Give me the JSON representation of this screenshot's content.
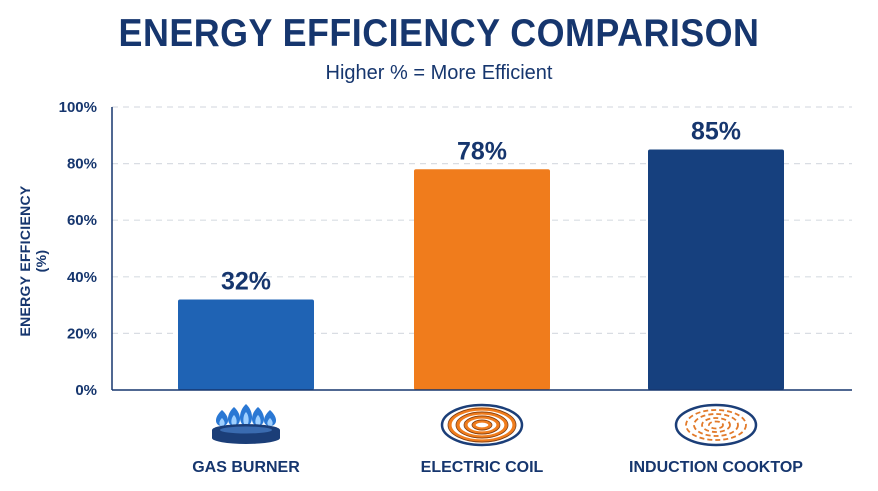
{
  "chart_data": {
    "type": "bar",
    "title": "ENERGY EFFICIENCY COMPARISON",
    "subtitle": "Higher % = More Efficient",
    "ylabel": "ENERGY EFFICIENCY (%)",
    "xlabel": "",
    "ylim": [
      0,
      100
    ],
    "yticks": [
      0,
      20,
      40,
      60,
      80,
      100
    ],
    "ytick_labels": [
      "0%",
      "20%",
      "40%",
      "60%",
      "80%",
      "100%"
    ],
    "grid": "horizontal dashed",
    "categories": [
      "GAS BURNER",
      "ELECTRIC COIL",
      "INDUCTION COOKTOP"
    ],
    "values": [
      32,
      78,
      85
    ],
    "data_labels": [
      "32%",
      "78%",
      "85%"
    ],
    "colors": [
      "#1f63b4",
      "#f07c1c",
      "#16407e"
    ],
    "icons": [
      "gas-flame-icon",
      "electric-coil-icon",
      "induction-coil-icon"
    ]
  }
}
